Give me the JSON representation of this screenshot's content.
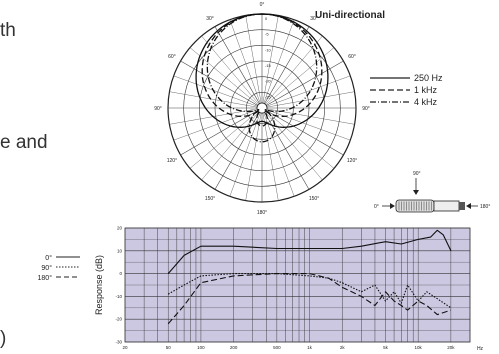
{
  "page_text_fragments": [
    "th",
    "e and",
    ")"
  ],
  "polar": {
    "title": "Uni-directional",
    "angle_labels": [
      "0°",
      "30°",
      "60°",
      "90°",
      "120°",
      "150°",
      "180°",
      "150°",
      "120°",
      "90°",
      "60°",
      "30°"
    ],
    "ring_labels": [
      "0",
      "-5",
      "-10",
      "-15",
      "-20",
      "-25"
    ],
    "legend": [
      {
        "label": "250 Hz",
        "style": "solid"
      },
      {
        "label": "1 kHz",
        "style": "dashed"
      },
      {
        "label": "4 kHz",
        "style": "dash-dot"
      }
    ]
  },
  "mic_diagram": {
    "top_angle": "90°",
    "left_angle": "0°",
    "right_angle": "180°"
  },
  "response_legend": [
    {
      "label": "0°",
      "style": "solid"
    },
    {
      "label": "90°",
      "style": "dotted"
    },
    {
      "label": "180°",
      "style": "dashed"
    }
  ],
  "chart_data": {
    "type": "line",
    "ylabel": "Response (dB)",
    "xlabel_unit": "Hz",
    "x_ticks": [
      "20",
      "50",
      "100",
      "200",
      "500",
      "1k",
      "2k",
      "5k",
      "10k",
      "20k"
    ],
    "x_tick_values": [
      20,
      50,
      100,
      200,
      500,
      1000,
      2000,
      5000,
      10000,
      20000
    ],
    "y_ticks": [
      "20",
      "10",
      "0",
      "-10",
      "-20",
      "-30"
    ],
    "y_tick_values": [
      20,
      10,
      0,
      -10,
      -20,
      -30
    ],
    "xlim": [
      20,
      30000
    ],
    "ylim": [
      -30,
      20
    ],
    "grid": true,
    "series": [
      {
        "name": "0°",
        "style": "solid",
        "x": [
          50,
          70,
          100,
          200,
          500,
          1000,
          2000,
          3000,
          5000,
          7000,
          10000,
          13000,
          15000,
          17000,
          20000
        ],
        "y": [
          0,
          8,
          12,
          12,
          11,
          11,
          11,
          12,
          14,
          13,
          15,
          16,
          19,
          17,
          10
        ]
      },
      {
        "name": "90°",
        "style": "dotted",
        "x": [
          50,
          70,
          100,
          200,
          500,
          1000,
          1500,
          2000,
          3000,
          4000,
          5000,
          6000,
          7000,
          8000,
          10000,
          12000,
          15000,
          20000
        ],
        "y": [
          -9,
          -5,
          -1,
          0,
          0,
          -1,
          -2,
          -4,
          -8,
          -5,
          -12,
          -8,
          -13,
          -5,
          -12,
          -8,
          -11,
          -15
        ]
      },
      {
        "name": "180°",
        "style": "dashed",
        "x": [
          50,
          70,
          100,
          200,
          500,
          1000,
          1500,
          2000,
          3000,
          4000,
          5000,
          6000,
          7000,
          8000,
          10000,
          12000,
          15000,
          20000
        ],
        "y": [
          -22,
          -14,
          -4,
          -1,
          0,
          0,
          -2,
          -6,
          -10,
          -14,
          -8,
          -12,
          -14,
          -16,
          -12,
          -14,
          -18,
          -16
        ]
      }
    ]
  }
}
